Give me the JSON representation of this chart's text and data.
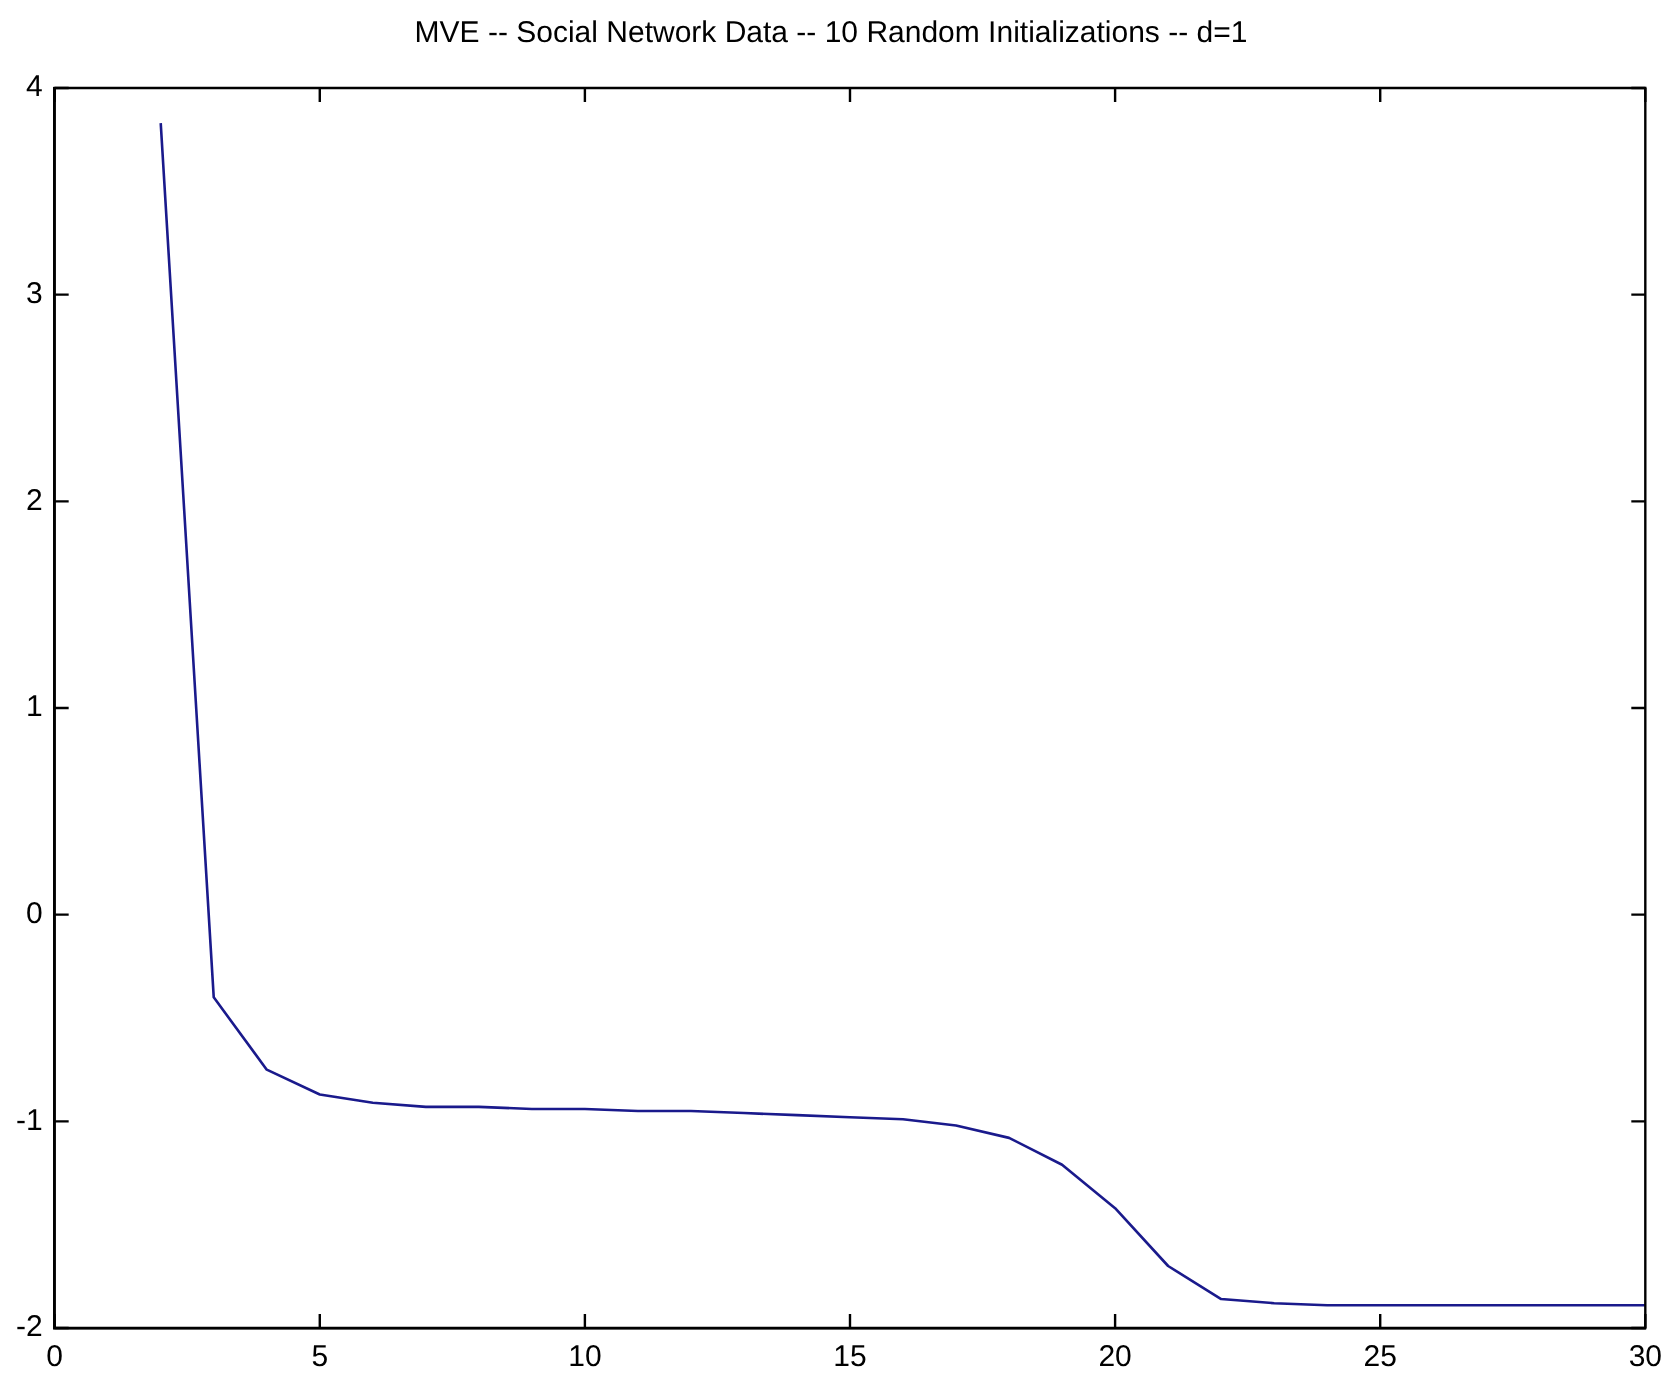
{
  "chart_data": {
    "type": "line",
    "title": "MVE -- Social Network Data -- 10 Random Initializations -- d=1",
    "x": [
      2,
      3,
      4,
      5,
      6,
      7,
      8,
      9,
      10,
      11,
      12,
      13,
      14,
      15,
      16,
      17,
      18,
      19,
      20,
      21,
      22,
      23,
      24,
      25,
      26,
      27,
      28,
      29,
      30
    ],
    "series": [
      {
        "color": "#1a1a8c",
        "values": [
          3.83,
          -0.4,
          -0.75,
          -0.87,
          -0.91,
          -0.93,
          -0.93,
          -0.94,
          -0.94,
          -0.95,
          -0.95,
          -0.96,
          -0.97,
          -0.98,
          -0.99,
          -1.02,
          -1.08,
          -1.21,
          -1.42,
          -1.7,
          -1.86,
          -1.88,
          -1.89,
          -1.89,
          -1.89,
          -1.89,
          -1.89,
          -1.89,
          -1.89
        ]
      }
    ],
    "xlim": [
      0,
      30
    ],
    "xticks": [
      0,
      5,
      10,
      15,
      20,
      25,
      30
    ],
    "ylim": [
      -2,
      4
    ],
    "yticks": [
      -2,
      -1,
      0,
      1,
      2,
      3,
      4
    ],
    "grid": false,
    "legend": false,
    "marker": "none",
    "line_style": "solid"
  }
}
